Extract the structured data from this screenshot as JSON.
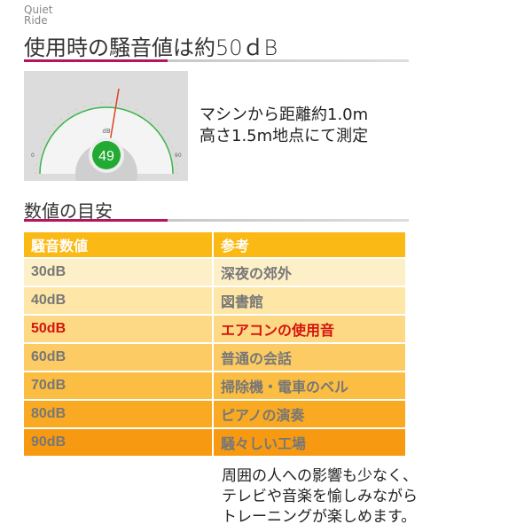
{
  "brand": {
    "line1": "Quiet",
    "line2": "Ride"
  },
  "heading": "使用時の騒音値は約50ｄB",
  "gauge": {
    "unit": "dB",
    "value": "49",
    "min": "0",
    "max": "90",
    "accent": "#22aa33",
    "needle": "#e04020"
  },
  "measurement": {
    "line1": "マシンから距離約1.0m",
    "line2": "高さ1.5m地点にて測定"
  },
  "subheading": "数値の目安",
  "table": {
    "headers": [
      "騒音数値",
      "参考"
    ],
    "rows": [
      {
        "level": "30dB",
        "ref": "深夜の郊外",
        "color": "#fdf0c8"
      },
      {
        "level": "40dB",
        "ref": "図書館",
        "color": "#fde6a6"
      },
      {
        "level": "50dB",
        "ref": "エアコンの使用音",
        "color": "#fdd986"
      },
      {
        "level": "60dB",
        "ref": "普通の会話",
        "color": "#fccb63"
      },
      {
        "level": "70dB",
        "ref": "掃除機・電車のベル",
        "color": "#fbbd42"
      },
      {
        "level": "80dB",
        "ref": "ピアノの演奏",
        "color": "#f9aa22"
      },
      {
        "level": "90dB",
        "ref": "騒々しい工場",
        "color": "#f79a12"
      }
    ],
    "highlight_color": "#d4140c"
  },
  "note": {
    "line1": "周囲の人への影響も少なく、",
    "line2": "テレビや音楽を愉しみながら",
    "line3": "トレーニングが楽しめます。"
  },
  "accent_color": "#b5145f"
}
